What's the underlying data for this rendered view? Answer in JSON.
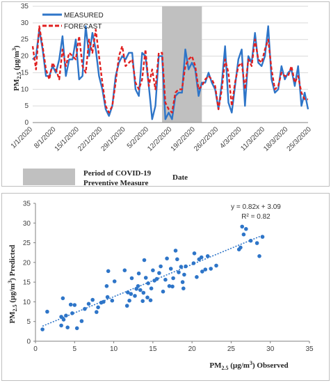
{
  "chart_data": [
    {
      "type": "line",
      "ylabel": "PM2.5 (µg/m³)",
      "xlabel": "Date",
      "ylim": [
        0,
        35
      ],
      "yticks": [
        0,
        5,
        10,
        15,
        20,
        25,
        30,
        35
      ],
      "x_tick_labels": [
        "1/1/2020",
        "8/1/2020",
        "15/1/2020",
        "22/1/2020",
        "29/1/2020",
        "5/2/2020",
        "12/2/2020",
        "19/2/2020",
        "26/2/2020",
        "4/3/2020",
        "11/3/2020",
        "18/3/2020",
        "25/3/2020"
      ],
      "legend_position": "top-left",
      "shaded_region": {
        "label_line1": "Period of COVID-19",
        "label_line2": "Preventive Measure",
        "start_day": 39,
        "end_day": 51,
        "color": "#c0c0c0"
      },
      "series": [
        {
          "name": "MEASURED",
          "color": "#2e75c8",
          "style": "solid",
          "values": [
            19,
            20,
            28,
            22,
            14,
            14,
            17,
            15,
            19,
            26,
            14,
            19,
            19,
            25,
            13,
            14,
            29,
            20,
            27,
            22,
            14,
            10,
            4,
            2,
            5,
            14,
            18,
            20,
            19,
            21,
            21,
            10,
            8,
            21,
            20,
            11,
            1,
            5,
            20,
            20,
            1,
            3,
            1,
            8,
            9,
            9,
            22,
            16,
            18,
            16,
            8,
            12,
            12,
            15,
            12,
            10,
            4,
            12,
            23,
            6,
            3,
            11,
            19,
            22,
            5,
            20,
            18,
            27,
            18,
            17,
            20,
            29,
            13,
            9,
            10,
            17,
            13,
            15,
            16,
            11,
            17,
            5,
            9,
            4
          ]
        },
        {
          "name": "FORECAST",
          "color": "#e02020",
          "style": "dashed",
          "values": [
            23,
            16,
            29,
            23,
            16,
            13,
            18,
            16,
            13,
            22,
            17,
            21,
            20,
            19,
            26,
            17,
            15,
            25,
            21,
            28,
            20,
            12,
            5,
            3,
            5,
            12,
            20,
            23,
            17,
            18,
            19,
            12,
            10,
            13,
            22,
            11,
            16,
            10,
            21,
            21,
            6,
            4,
            3,
            9,
            10,
            10,
            17,
            19,
            20,
            17,
            10,
            11,
            13,
            14,
            13,
            11,
            4,
            10,
            19,
            15,
            5,
            12,
            17,
            18,
            10,
            19,
            17,
            25,
            19,
            18,
            22,
            25,
            16,
            10,
            11,
            15,
            14,
            14,
            17,
            12,
            14,
            9,
            7,
            7
          ]
        }
      ]
    },
    {
      "type": "scatter",
      "xlabel": "PM2.5 (µg/m³) Observed",
      "ylabel": "PM2.5 (µg/m³) Predicted",
      "xlim": [
        0,
        35
      ],
      "ylim": [
        0,
        35
      ],
      "xticks": [
        0,
        5,
        10,
        15,
        20,
        25,
        30,
        35
      ],
      "yticks": [
        0,
        5,
        10,
        15,
        20,
        25,
        30,
        35
      ],
      "trendline": {
        "equation": "y = 0.82x + 3.09",
        "r_squared": "R² = 0.82",
        "slope": 0.82,
        "intercept": 3.09,
        "x_range": [
          0.9,
          29
        ],
        "color": "#2e75c8"
      },
      "point_color": "#2e75c8",
      "points": [
        [
          0.9,
          3.0
        ],
        [
          1.5,
          7.5
        ],
        [
          3.3,
          4.0
        ],
        [
          3.3,
          6.2
        ],
        [
          3.5,
          10.9
        ],
        [
          3.6,
          5.5
        ],
        [
          3.9,
          6.5
        ],
        [
          4.1,
          3.5
        ],
        [
          4.5,
          9.3
        ],
        [
          4.7,
          7.1
        ],
        [
          5.0,
          9.2
        ],
        [
          5.3,
          3.3
        ],
        [
          5.9,
          5.1
        ],
        [
          6.3,
          8.2
        ],
        [
          6.8,
          9.5
        ],
        [
          7.3,
          10.5
        ],
        [
          7.8,
          7.4
        ],
        [
          8.0,
          8.6
        ],
        [
          8.4,
          9.8
        ],
        [
          8.7,
          10.0
        ],
        [
          9.1,
          14.0
        ],
        [
          9.2,
          11.2
        ],
        [
          9.3,
          17.8
        ],
        [
          9.8,
          10.3
        ],
        [
          10.1,
          15.2
        ],
        [
          11.4,
          18.0
        ],
        [
          11.7,
          9.0
        ],
        [
          11.8,
          12.4
        ],
        [
          12.0,
          10.3
        ],
        [
          12.2,
          12.0
        ],
        [
          12.3,
          16.0
        ],
        [
          12.7,
          11.5
        ],
        [
          12.9,
          13.3
        ],
        [
          13.1,
          14.0
        ],
        [
          13.2,
          17.2
        ],
        [
          13.4,
          13.0
        ],
        [
          13.7,
          10.2
        ],
        [
          13.8,
          12.3
        ],
        [
          13.9,
          20.6
        ],
        [
          14.1,
          16.1
        ],
        [
          14.3,
          11.1
        ],
        [
          14.4,
          14.7
        ],
        [
          14.7,
          10.4
        ],
        [
          14.8,
          13.4
        ],
        [
          15.0,
          18.0
        ],
        [
          15.2,
          15.4
        ],
        [
          15.5,
          15.8
        ],
        [
          15.8,
          17.3
        ],
        [
          16.0,
          19.0
        ],
        [
          16.3,
          12.6
        ],
        [
          16.6,
          15.6
        ],
        [
          16.8,
          21.0
        ],
        [
          17.1,
          14.0
        ],
        [
          17.3,
          18.4
        ],
        [
          17.5,
          13.9
        ],
        [
          17.6,
          16.0
        ],
        [
          17.9,
          23.0
        ],
        [
          18.1,
          20.8
        ],
        [
          18.3,
          17.5
        ],
        [
          18.6,
          18.9
        ],
        [
          18.8,
          15.0
        ],
        [
          18.9,
          13.4
        ],
        [
          19.0,
          16.9
        ],
        [
          19.2,
          19.0
        ],
        [
          20.2,
          19.8
        ],
        [
          20.3,
          22.3
        ],
        [
          20.6,
          16.3
        ],
        [
          20.9,
          20.8
        ],
        [
          21.2,
          21.3
        ],
        [
          21.3,
          17.7
        ],
        [
          21.7,
          18.2
        ],
        [
          22.0,
          21.6
        ],
        [
          22.4,
          18.4
        ],
        [
          23.1,
          19.2
        ],
        [
          26.0,
          23.3
        ],
        [
          26.2,
          23.8
        ],
        [
          26.4,
          29.1
        ],
        [
          26.6,
          27.1
        ],
        [
          26.9,
          28.5
        ],
        [
          27.5,
          25.5
        ],
        [
          28.3,
          24.9
        ],
        [
          28.6,
          21.6
        ],
        [
          29.0,
          26.5
        ]
      ]
    }
  ]
}
